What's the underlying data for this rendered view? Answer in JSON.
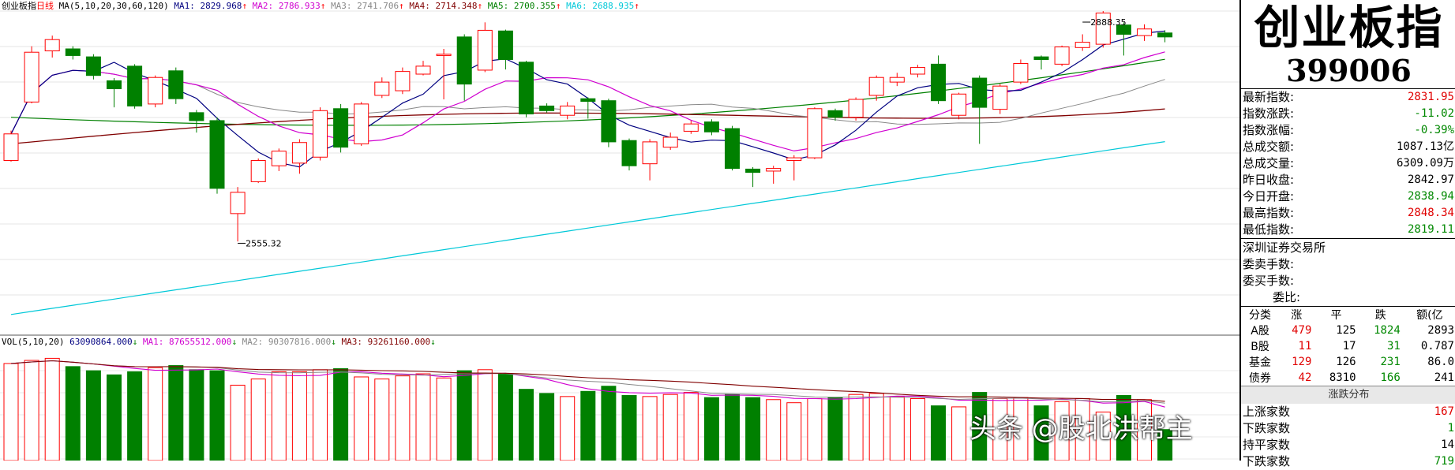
{
  "chart_data": {
    "type": "candlestick",
    "header": {
      "name": "创业板指",
      "period": "日线",
      "ma_label": "MA(5,10,20,30,60,120)",
      "ma_values": [
        {
          "name": "MA1",
          "value": "2829.968",
          "color": "#000080"
        },
        {
          "name": "MA2",
          "value": "2786.933",
          "color": "#d000d0"
        },
        {
          "name": "MA3",
          "value": "2741.706",
          "color": "#888888"
        },
        {
          "name": "MA4",
          "value": "2714.348",
          "color": "#800000"
        },
        {
          "name": "MA5",
          "value": "2700.355",
          "color": "#008000"
        },
        {
          "name": "MA6",
          "value": "2688.935",
          "color": "#00c8d8"
        }
      ]
    },
    "price_range": [
      2430,
      2905
    ],
    "candles": [
      {
        "o": 2680,
        "c": 2720,
        "h": 2725,
        "l": 2678
      },
      {
        "o": 2768,
        "c": 2843,
        "h": 2852,
        "l": 2766
      },
      {
        "o": 2845,
        "c": 2862,
        "h": 2868,
        "l": 2835
      },
      {
        "o": 2848,
        "c": 2838,
        "h": 2852,
        "l": 2832
      },
      {
        "o": 2836,
        "c": 2808,
        "h": 2840,
        "l": 2802
      },
      {
        "o": 2800,
        "c": 2788,
        "h": 2804,
        "l": 2760
      },
      {
        "o": 2822,
        "c": 2762,
        "h": 2825,
        "l": 2758
      },
      {
        "o": 2765,
        "c": 2805,
        "h": 2808,
        "l": 2760
      },
      {
        "o": 2815,
        "c": 2773,
        "h": 2820,
        "l": 2765
      },
      {
        "o": 2752,
        "c": 2740,
        "h": 2756,
        "l": 2722
      },
      {
        "o": 2740,
        "c": 2638,
        "h": 2745,
        "l": 2630
      },
      {
        "o": 2600,
        "c": 2632,
        "h": 2640,
        "l": 2558
      },
      {
        "o": 2648,
        "c": 2680,
        "h": 2683,
        "l": 2646
      },
      {
        "o": 2672,
        "c": 2694,
        "h": 2698,
        "l": 2664
      },
      {
        "o": 2676,
        "c": 2707,
        "h": 2712,
        "l": 2660
      },
      {
        "o": 2685,
        "c": 2755,
        "h": 2760,
        "l": 2680
      },
      {
        "o": 2758,
        "c": 2700,
        "h": 2765,
        "l": 2692
      },
      {
        "o": 2705,
        "c": 2765,
        "h": 2768,
        "l": 2702
      },
      {
        "o": 2778,
        "c": 2798,
        "h": 2805,
        "l": 2774
      },
      {
        "o": 2785,
        "c": 2814,
        "h": 2820,
        "l": 2780
      },
      {
        "o": 2810,
        "c": 2822,
        "h": 2830,
        "l": 2808
      },
      {
        "o": 2838,
        "c": 2840,
        "h": 2848,
        "l": 2772
      },
      {
        "o": 2866,
        "c": 2795,
        "h": 2870,
        "l": 2770
      },
      {
        "o": 2816,
        "c": 2876,
        "h": 2888,
        "l": 2813
      },
      {
        "o": 2875,
        "c": 2832,
        "h": 2877,
        "l": 2817
      },
      {
        "o": 2828,
        "c": 2750,
        "h": 2830,
        "l": 2745
      },
      {
        "o": 2762,
        "c": 2755,
        "h": 2766,
        "l": 2752
      },
      {
        "o": 2748,
        "c": 2762,
        "h": 2768,
        "l": 2742
      },
      {
        "o": 2773,
        "c": 2769,
        "h": 2775,
        "l": 2743
      },
      {
        "o": 2770,
        "c": 2708,
        "h": 2773,
        "l": 2700
      },
      {
        "o": 2710,
        "c": 2672,
        "h": 2713,
        "l": 2665
      },
      {
        "o": 2675,
        "c": 2708,
        "h": 2712,
        "l": 2650
      },
      {
        "o": 2700,
        "c": 2715,
        "h": 2722,
        "l": 2696
      },
      {
        "o": 2724,
        "c": 2735,
        "h": 2740,
        "l": 2720
      },
      {
        "o": 2738,
        "c": 2723,
        "h": 2742,
        "l": 2718
      },
      {
        "o": 2728,
        "c": 2668,
        "h": 2732,
        "l": 2665
      },
      {
        "o": 2667,
        "c": 2662,
        "h": 2670,
        "l": 2640
      },
      {
        "o": 2664,
        "c": 2668,
        "h": 2672,
        "l": 2645
      },
      {
        "o": 2680,
        "c": 2684,
        "h": 2688,
        "l": 2650
      },
      {
        "o": 2684,
        "c": 2758,
        "h": 2760,
        "l": 2682
      },
      {
        "o": 2755,
        "c": 2745,
        "h": 2758,
        "l": 2740
      },
      {
        "o": 2745,
        "c": 2772,
        "h": 2775,
        "l": 2740
      },
      {
        "o": 2778,
        "c": 2805,
        "h": 2808,
        "l": 2770
      },
      {
        "o": 2798,
        "c": 2805,
        "h": 2812,
        "l": 2792
      },
      {
        "o": 2810,
        "c": 2820,
        "h": 2824,
        "l": 2805
      },
      {
        "o": 2825,
        "c": 2770,
        "h": 2838,
        "l": 2765
      },
      {
        "o": 2748,
        "c": 2780,
        "h": 2782,
        "l": 2742
      },
      {
        "o": 2804,
        "c": 2760,
        "h": 2808,
        "l": 2705
      },
      {
        "o": 2757,
        "c": 2792,
        "h": 2795,
        "l": 2750
      },
      {
        "o": 2798,
        "c": 2826,
        "h": 2832,
        "l": 2795
      },
      {
        "o": 2836,
        "c": 2832,
        "h": 2838,
        "l": 2817
      },
      {
        "o": 2825,
        "c": 2851,
        "h": 2853,
        "l": 2822
      },
      {
        "o": 2850,
        "c": 2858,
        "h": 2870,
        "l": 2845
      },
      {
        "o": 2855,
        "c": 2902,
        "h": 2905,
        "l": 2850
      },
      {
        "o": 2884,
        "c": 2870,
        "h": 2888,
        "l": 2838
      },
      {
        "o": 2868,
        "c": 2878,
        "h": 2885,
        "l": 2860
      },
      {
        "o": 2872,
        "c": 2866,
        "h": 2876,
        "l": 2858
      }
    ],
    "volumes": [
      94,
      97,
      99,
      91,
      87,
      83,
      86,
      90,
      92,
      88,
      87,
      73,
      79,
      86,
      86,
      88,
      89,
      81,
      79,
      82,
      84,
      80,
      87,
      88,
      84,
      69,
      65,
      62,
      67,
      72,
      63,
      62,
      64,
      66,
      61,
      64,
      61,
      59,
      56,
      60,
      61,
      64,
      65,
      62,
      60,
      53,
      52,
      66,
      60,
      61,
      53,
      57,
      60,
      47,
      63,
      59,
      30
    ],
    "annotations": [
      {
        "text": "2888.35",
        "index": 52,
        "value": 2888.35
      },
      {
        "text": "2555.32",
        "index": 11,
        "value": 2555.32
      }
    ],
    "ma_series": [
      {
        "name": "MA1",
        "color": "#000080"
      },
      {
        "name": "MA2",
        "color": "#d000d0"
      },
      {
        "name": "MA3",
        "color": "#888888"
      },
      {
        "name": "MA4",
        "color": "#800000"
      },
      {
        "name": "MA5",
        "color": "#008000"
      },
      {
        "name": "MA6",
        "color": "#00c8d8"
      }
    ],
    "volume_header": {
      "label": "VOL(5,10,20)",
      "vol_value": "63090864.000",
      "ma_values": [
        {
          "name": "MA1",
          "value": "87655512.000",
          "color": "#d000d0"
        },
        {
          "name": "MA2",
          "value": "90307816.000",
          "color": "#888888"
        },
        {
          "name": "MA3",
          "value": "93261160.000",
          "color": "#800000"
        }
      ]
    },
    "volume_range": [
      0,
      110
    ]
  },
  "panel": {
    "name": "创业板指",
    "code": "399006",
    "stats": [
      {
        "label": "最新指数:",
        "value": "2831.95",
        "tone": "up"
      },
      {
        "label": "指数涨跌:",
        "value": "-11.02",
        "tone": "down"
      },
      {
        "label": "指数涨幅:",
        "value": "-0.39%",
        "tone": "down"
      },
      {
        "label": "总成交额:",
        "value": "1087.13亿",
        "tone": "blk"
      },
      {
        "label": "总成交量:",
        "value": "6309.09万",
        "tone": "blk"
      },
      {
        "label": "昨日收盘:",
        "value": "2842.97",
        "tone": "blk"
      },
      {
        "label": "今日开盘:",
        "value": "2838.94",
        "tone": "down"
      },
      {
        "label": "最高指数:",
        "value": "2848.34",
        "tone": "up"
      },
      {
        "label": "最低指数:",
        "value": "2819.11",
        "tone": "down"
      }
    ],
    "exchange": "深圳证券交易所",
    "order_labels": {
      "sell": "委卖手数:",
      "buy": "委买手数:",
      "ratio": "委比:"
    },
    "board_headers": [
      "分类",
      "涨",
      "平",
      "跌",
      "额(亿"
    ],
    "board_rows": [
      {
        "name": "A股",
        "up": "479",
        "flat": "125",
        "down": "1824",
        "amt": "2893"
      },
      {
        "name": "B股",
        "up": "11",
        "flat": "17",
        "down": "31",
        "amt": "0.787"
      },
      {
        "name": "基金",
        "up": "129",
        "flat": "126",
        "down": "231",
        "amt": "86.0"
      },
      {
        "name": "债券",
        "up": "42",
        "flat": "8310",
        "down": "166",
        "amt": "241"
      }
    ],
    "dist_title": "涨跌分布",
    "dist_rows": [
      {
        "label": "上涨家数",
        "value": "167",
        "tone": "up"
      },
      {
        "label": "下跌家数",
        "value": "1",
        "tone": "down"
      },
      {
        "label": "持平家数",
        "value": "14",
        "tone": "blk"
      },
      {
        "label": "下跌家数",
        "value": "719",
        "tone": "down"
      }
    ]
  },
  "watermark": "头条 @股北洪帮主"
}
